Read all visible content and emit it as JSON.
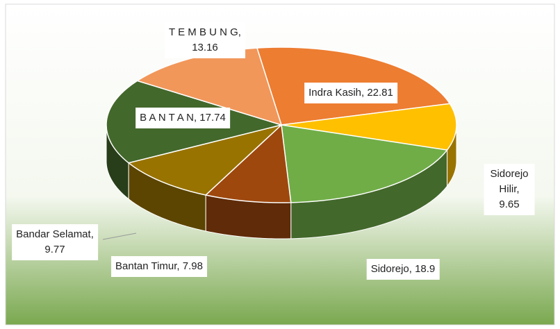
{
  "chart_data": {
    "type": "pie",
    "values": [
      22.81,
      9.65,
      18.9,
      7.98,
      9.77,
      17.74,
      13.16
    ],
    "value_labels": [
      "Indra Kasih, 22.81",
      "Sidorejo Hilir, 9.65",
      "Sidorejo, 18.9",
      "Bantan Timur, 7.98",
      "Bandar Selamat,\n9.77",
      "B A N T A N, 17.74",
      "T E M B U N G,\n13.16"
    ],
    "colors": [
      "#ED7D31",
      "#FFC000",
      "#70AD47",
      "#9E480E",
      "#997300",
      "#43682B",
      "#F1975A"
    ]
  }
}
